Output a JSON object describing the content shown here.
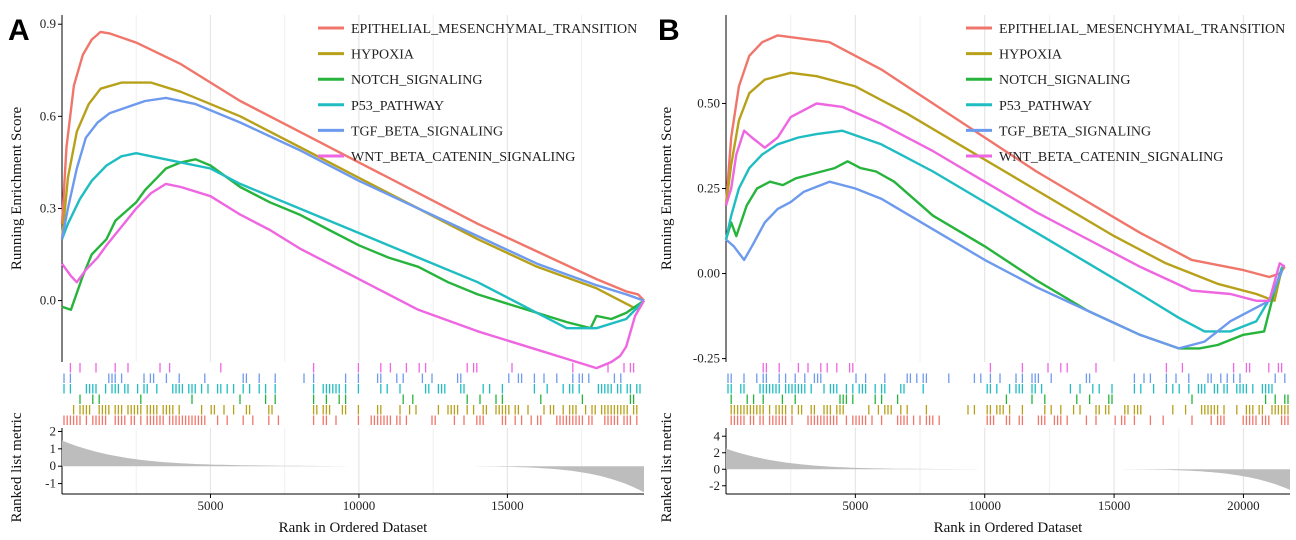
{
  "figure": {
    "panels": [
      {
        "letter": "A",
        "top_ylabel": "Running Enrichment Score",
        "bottom_ylabel": "Ranked list metric",
        "xlabel": "Rank in Ordered Dataset"
      },
      {
        "letter": "B",
        "top_ylabel": "Running Enrichment Score",
        "bottom_ylabel": "Ranked list metric",
        "xlabel": "Rank in Ordered Dataset"
      }
    ]
  },
  "colors": {
    "EPITHELIAL_MESENCHYMAL_TRANSITION": "#F0766B",
    "HYPOXIA": "#B8A11A",
    "NOTCH_SIGNALING": "#27B43C",
    "P53_PATHWAY": "#1FBDC2",
    "TGF_BETA_SIGNALING": "#6E9AEE",
    "WNT_BETA_CATENIN_SIGNALING": "#EE66E0",
    "metric_fill": "#BDBDBD"
  },
  "chart_data": [
    {
      "type": "line",
      "panel": "A",
      "xlabel": "Rank in Ordered Dataset",
      "ylabel": "Running Enrichment Score",
      "xlim": [
        0,
        19600
      ],
      "ylim": [
        -0.2,
        0.93
      ],
      "xticks": [
        5000,
        10000,
        15000
      ],
      "yticks": [
        0.0,
        0.3,
        0.6,
        0.9
      ],
      "ytick_labels": [
        "0.0",
        "0.3",
        "0.6",
        "0.9"
      ],
      "legend_position": "top-right",
      "series": [
        {
          "name": "EPITHELIAL_MESENCHYMAL_TRANSITION",
          "x": [
            0,
            150,
            400,
            700,
            1000,
            1300,
            1600,
            2500,
            4000,
            6000,
            8000,
            10000,
            12000,
            14000,
            16000,
            18000,
            19000,
            19400,
            19600
          ],
          "y": [
            0.25,
            0.5,
            0.7,
            0.8,
            0.85,
            0.875,
            0.87,
            0.84,
            0.77,
            0.65,
            0.55,
            0.45,
            0.35,
            0.25,
            0.16,
            0.07,
            0.03,
            0.02,
            0.0
          ]
        },
        {
          "name": "HYPOXIA",
          "x": [
            0,
            200,
            500,
            900,
            1300,
            2000,
            3000,
            4000,
            6000,
            8000,
            10000,
            12000,
            14000,
            16000,
            18000,
            19000,
            19400,
            19600
          ],
          "y": [
            0.2,
            0.4,
            0.55,
            0.64,
            0.69,
            0.71,
            0.71,
            0.68,
            0.6,
            0.5,
            0.4,
            0.3,
            0.2,
            0.11,
            0.04,
            -0.01,
            -0.03,
            0.0
          ]
        },
        {
          "name": "NOTCH_SIGNALING",
          "x": [
            0,
            300,
            700,
            1000,
            1500,
            1800,
            2500,
            2800,
            3200,
            3500,
            4000,
            4500,
            5000,
            6000,
            7000,
            8000,
            9000,
            10000,
            11000,
            12000,
            13000,
            14000,
            15000,
            16000,
            17000,
            17800,
            18000,
            18500,
            19000,
            19600
          ],
          "y": [
            -0.02,
            -0.03,
            0.08,
            0.15,
            0.2,
            0.26,
            0.32,
            0.36,
            0.4,
            0.43,
            0.45,
            0.46,
            0.44,
            0.37,
            0.32,
            0.28,
            0.23,
            0.18,
            0.14,
            0.11,
            0.06,
            0.02,
            -0.01,
            -0.04,
            -0.07,
            -0.09,
            -0.05,
            -0.06,
            -0.04,
            0.0
          ]
        },
        {
          "name": "P53_PATHWAY",
          "x": [
            0,
            200,
            600,
            1000,
            1500,
            2000,
            2500,
            3000,
            4000,
            5000,
            6000,
            8000,
            10000,
            12000,
            14000,
            16000,
            17000,
            18000,
            19000,
            19600
          ],
          "y": [
            0.2,
            0.25,
            0.33,
            0.39,
            0.44,
            0.47,
            0.48,
            0.47,
            0.45,
            0.43,
            0.38,
            0.3,
            0.22,
            0.14,
            0.06,
            -0.04,
            -0.09,
            -0.09,
            -0.06,
            0.0
          ]
        },
        {
          "name": "TGF_BETA_SIGNALING",
          "x": [
            0,
            200,
            500,
            800,
            1200,
            1600,
            2200,
            2800,
            3500,
            4500,
            6000,
            8000,
            10000,
            12000,
            14000,
            16000,
            18000,
            19000,
            19600
          ],
          "y": [
            0.2,
            0.3,
            0.43,
            0.53,
            0.58,
            0.61,
            0.63,
            0.65,
            0.66,
            0.64,
            0.58,
            0.49,
            0.39,
            0.3,
            0.21,
            0.12,
            0.05,
            0.02,
            0.0
          ]
        },
        {
          "name": "WNT_BETA_CATENIN_SIGNALING",
          "x": [
            0,
            300,
            500,
            800,
            1200,
            1500,
            2000,
            2500,
            3000,
            3500,
            4000,
            5000,
            6000,
            7000,
            8000,
            10000,
            12000,
            14000,
            15000,
            16000,
            17000,
            18000,
            18500,
            18800,
            19000,
            19300,
            19600
          ],
          "y": [
            0.12,
            0.08,
            0.06,
            0.1,
            0.14,
            0.18,
            0.24,
            0.3,
            0.35,
            0.38,
            0.37,
            0.34,
            0.28,
            0.23,
            0.17,
            0.07,
            -0.03,
            -0.1,
            -0.13,
            -0.16,
            -0.19,
            -0.22,
            -0.2,
            -0.18,
            -0.15,
            -0.05,
            0.0
          ]
        }
      ]
    },
    {
      "type": "line",
      "panel": "B",
      "xlabel": "Rank in Ordered Dataset",
      "ylabel": "Running Enrichment Score",
      "xlim": [
        0,
        21800
      ],
      "ylim": [
        -0.26,
        0.76
      ],
      "xticks": [
        5000,
        10000,
        15000,
        20000
      ],
      "yticks": [
        -0.25,
        0.0,
        0.25,
        0.5
      ],
      "ytick_labels": [
        "-0.25",
        "0.00",
        "0.25",
        "0.50"
      ],
      "legend_position": "top-right",
      "series": [
        {
          "name": "EPITHELIAL_MESENCHYMAL_TRANSITION",
          "x": [
            0,
            200,
            500,
            900,
            1400,
            2000,
            3000,
            4000,
            6000,
            8000,
            10000,
            12000,
            14000,
            16000,
            18000,
            20000,
            21000,
            21400,
            21600
          ],
          "y": [
            0.2,
            0.4,
            0.55,
            0.64,
            0.68,
            0.7,
            0.69,
            0.68,
            0.6,
            0.5,
            0.4,
            0.3,
            0.21,
            0.12,
            0.04,
            0.01,
            -0.01,
            0.0,
            0.02
          ]
        },
        {
          "name": "HYPOXIA",
          "x": [
            0,
            200,
            500,
            900,
            1500,
            2500,
            3500,
            5000,
            7000,
            9000,
            11000,
            13000,
            15000,
            17000,
            19000,
            20500,
            21200,
            21500
          ],
          "y": [
            0.2,
            0.32,
            0.45,
            0.53,
            0.57,
            0.59,
            0.58,
            0.55,
            0.47,
            0.38,
            0.29,
            0.2,
            0.11,
            0.03,
            -0.03,
            -0.06,
            -0.08,
            0.02
          ]
        },
        {
          "name": "NOTCH_SIGNALING",
          "x": [
            0,
            200,
            400,
            800,
            1200,
            1700,
            2200,
            2700,
            3200,
            3700,
            4200,
            4700,
            5200,
            5800,
            6500,
            8000,
            10000,
            12000,
            14000,
            16000,
            17500,
            18300,
            19000,
            20000,
            20800,
            21200,
            21500
          ],
          "y": [
            0.1,
            0.15,
            0.11,
            0.2,
            0.25,
            0.27,
            0.26,
            0.28,
            0.29,
            0.3,
            0.31,
            0.33,
            0.31,
            0.3,
            0.27,
            0.17,
            0.08,
            -0.02,
            -0.11,
            -0.18,
            -0.22,
            -0.22,
            -0.21,
            -0.18,
            -0.17,
            -0.05,
            0.01
          ]
        },
        {
          "name": "P53_PATHWAY",
          "x": [
            0,
            200,
            500,
            900,
            1400,
            2000,
            2800,
            3500,
            4500,
            6000,
            8000,
            10000,
            12000,
            14000,
            16000,
            17500,
            18500,
            19500,
            20500,
            21200,
            21500
          ],
          "y": [
            0.1,
            0.17,
            0.25,
            0.31,
            0.35,
            0.38,
            0.4,
            0.41,
            0.42,
            0.38,
            0.3,
            0.21,
            0.12,
            0.03,
            -0.06,
            -0.13,
            -0.17,
            -0.17,
            -0.14,
            -0.05,
            0.02
          ]
        },
        {
          "name": "TGF_BETA_SIGNALING",
          "x": [
            0,
            300,
            700,
            1000,
            1500,
            2000,
            2500,
            3000,
            4000,
            5000,
            6000,
            8000,
            10000,
            12000,
            14000,
            16000,
            17500,
            18500,
            19500,
            20500,
            21000,
            21500
          ],
          "y": [
            0.1,
            0.08,
            0.04,
            0.08,
            0.15,
            0.19,
            0.21,
            0.24,
            0.27,
            0.25,
            0.22,
            0.13,
            0.04,
            -0.04,
            -0.11,
            -0.18,
            -0.22,
            -0.2,
            -0.14,
            -0.1,
            -0.08,
            0.01
          ]
        },
        {
          "name": "WNT_BETA_CATENIN_SIGNALING",
          "x": [
            0,
            200,
            400,
            700,
            1000,
            1500,
            2000,
            2500,
            3000,
            3500,
            4500,
            6000,
            8000,
            10000,
            12000,
            14000,
            16000,
            18000,
            19500,
            20500,
            21000,
            21400,
            21600
          ],
          "y": [
            0.2,
            0.25,
            0.35,
            0.42,
            0.4,
            0.37,
            0.4,
            0.46,
            0.48,
            0.5,
            0.49,
            0.44,
            0.36,
            0.27,
            0.18,
            0.1,
            0.02,
            -0.05,
            -0.06,
            -0.08,
            -0.08,
            0.03,
            0.02
          ]
        }
      ],
      "metric": {
        "yticks": [
          -2,
          0,
          2,
          4
        ],
        "ylim": [
          -3,
          5
        ]
      }
    }
  ],
  "metric_panels": [
    {
      "panel": "A",
      "yticks": [
        -1,
        0,
        1,
        2
      ],
      "ylim": [
        -1.6,
        2.2
      ]
    },
    {
      "panel": "B",
      "yticks": [
        -2,
        0,
        2,
        4
      ],
      "ylim": [
        -3,
        5
      ]
    }
  ]
}
